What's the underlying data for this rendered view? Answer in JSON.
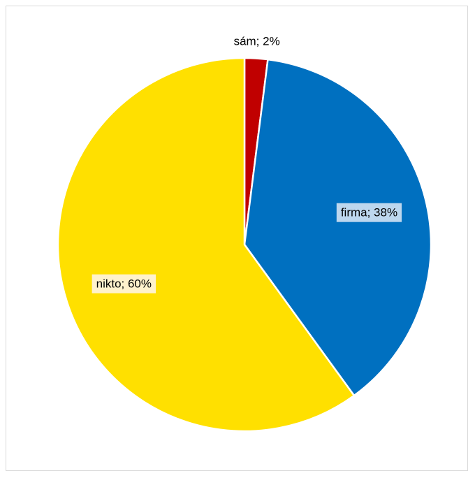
{
  "chart_data": {
    "type": "pie",
    "title": "",
    "slices": [
      {
        "label": "sám",
        "value": 2,
        "color": "#C00000",
        "data_label": "sám; 2%"
      },
      {
        "label": "firma",
        "value": 38,
        "color": "#0070C0",
        "data_label": "firma; 38%"
      },
      {
        "label": "nikto",
        "value": 60,
        "color": "#FFE000",
        "data_label": "nikto; 60%"
      }
    ],
    "legend": "none"
  }
}
